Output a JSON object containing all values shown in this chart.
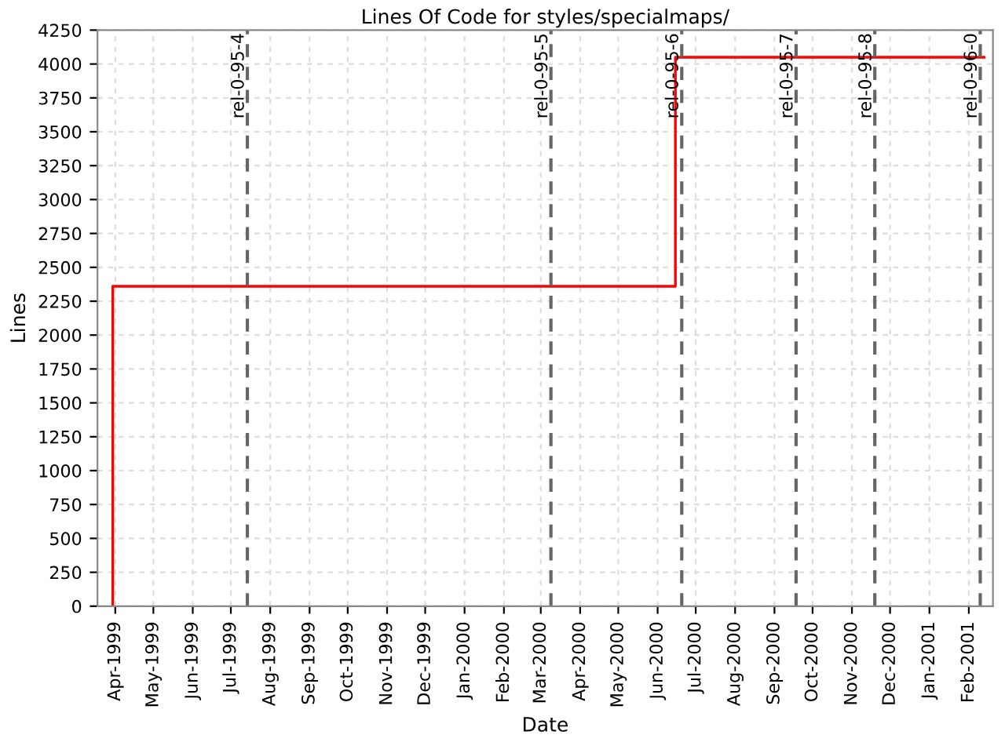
{
  "chart_data": {
    "type": "step",
    "title": "Lines Of Code for styles/specialmaps/",
    "xlabel": "Date",
    "ylabel": "Lines",
    "x": [
      "1999-03-30",
      "1999-03-30",
      "2000-06-15",
      "2001-02-13"
    ],
    "series": [
      {
        "color": "#ff0000",
        "values": [
          0,
          2360,
          4050,
          4050
        ]
      }
    ],
    "xlim": [
      "1999-03-18",
      "2001-02-20"
    ],
    "xticks": [
      {
        "value": "1999-04-01",
        "label": "Apr-1999"
      },
      {
        "value": "1999-05-01",
        "label": "May-1999"
      },
      {
        "value": "1999-06-01",
        "label": "Jun-1999"
      },
      {
        "value": "1999-07-01",
        "label": "Jul-1999"
      },
      {
        "value": "1999-08-01",
        "label": "Aug-1999"
      },
      {
        "value": "1999-09-01",
        "label": "Sep-1999"
      },
      {
        "value": "1999-10-01",
        "label": "Oct-1999"
      },
      {
        "value": "1999-11-01",
        "label": "Nov-1999"
      },
      {
        "value": "1999-12-01",
        "label": "Dec-1999"
      },
      {
        "value": "2000-01-01",
        "label": "Jan-2000"
      },
      {
        "value": "2000-02-01",
        "label": "Feb-2000"
      },
      {
        "value": "2000-03-01",
        "label": "Mar-2000"
      },
      {
        "value": "2000-04-01",
        "label": "Apr-2000"
      },
      {
        "value": "2000-05-01",
        "label": "May-2000"
      },
      {
        "value": "2000-06-01",
        "label": "Jun-2000"
      },
      {
        "value": "2000-07-01",
        "label": "Jul-2000"
      },
      {
        "value": "2000-08-01",
        "label": "Aug-2000"
      },
      {
        "value": "2000-09-01",
        "label": "Sep-2000"
      },
      {
        "value": "2000-10-01",
        "label": "Oct-2000"
      },
      {
        "value": "2000-11-01",
        "label": "Nov-2000"
      },
      {
        "value": "2000-12-01",
        "label": "Dec-2000"
      },
      {
        "value": "2001-01-01",
        "label": "Jan-2001"
      },
      {
        "value": "2001-02-01",
        "label": "Feb-2001"
      }
    ],
    "ylim": [
      0,
      4250
    ],
    "yticks": [
      0,
      250,
      500,
      750,
      1000,
      1250,
      1500,
      1750,
      2000,
      2250,
      2500,
      2750,
      3000,
      3250,
      3500,
      3750,
      4000,
      4250
    ],
    "ref_lines": [
      {
        "axis": "x",
        "value": "1999-07-14",
        "label": "rel-0-95-4",
        "color": "#666666",
        "line_style": "dashed"
      },
      {
        "axis": "x",
        "value": "2000-03-09",
        "label": "rel-0-95-5",
        "color": "#666666",
        "line_style": "dashed"
      },
      {
        "axis": "x",
        "value": "2000-06-20",
        "label": "rel-0-95-6",
        "color": "#666666",
        "line_style": "dashed"
      },
      {
        "axis": "x",
        "value": "2000-09-18",
        "label": "rel-0-95-7",
        "color": "#666666",
        "line_style": "dashed"
      },
      {
        "axis": "x",
        "value": "2000-11-19",
        "label": "rel-0-95-8",
        "color": "#666666",
        "line_style": "dashed"
      },
      {
        "axis": "x",
        "value": "2001-02-10",
        "label": "rel-0-96-0",
        "color": "#666666",
        "line_style": "dashed"
      }
    ],
    "grid": true
  }
}
